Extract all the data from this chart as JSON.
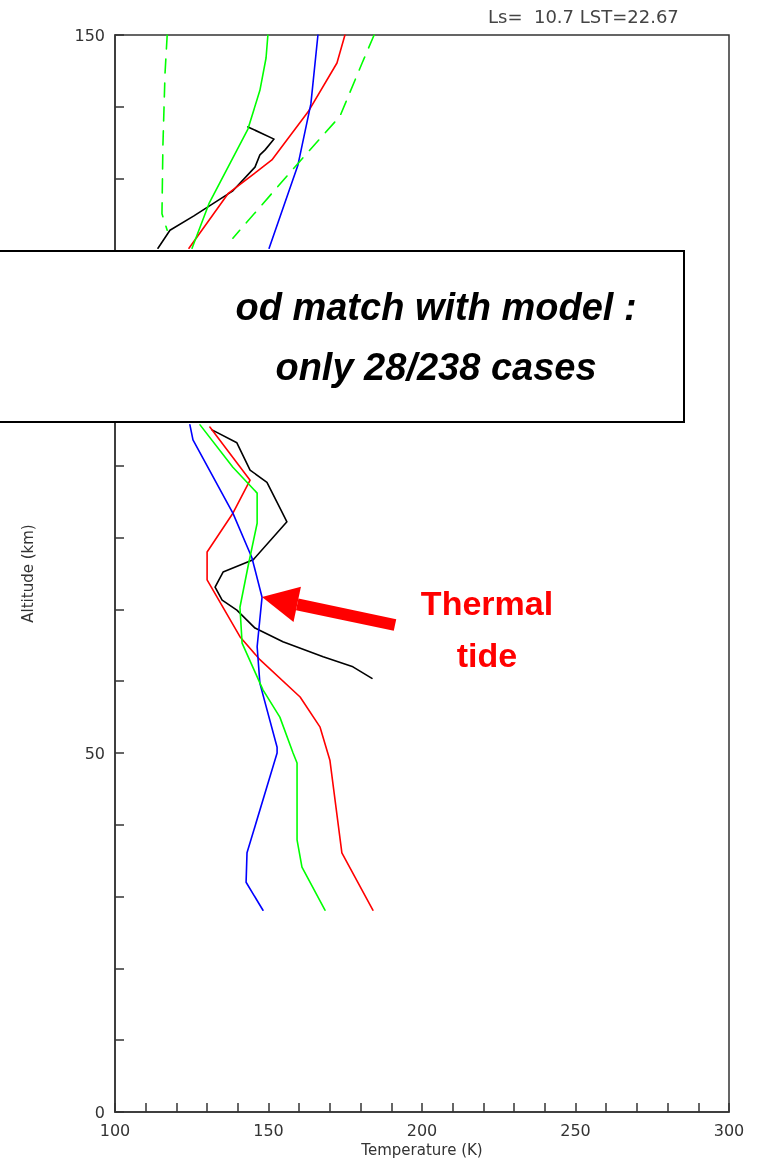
{
  "chart_data": {
    "type": "line",
    "title": "Ls=  10.7 LST=22.67",
    "xlabel": "Temperature (K)",
    "ylabel": "Altitude (km)",
    "xlim": [
      100,
      300
    ],
    "ylim": [
      0,
      150
    ],
    "xticks": [
      100,
      {
        "value": 110,
        "label": null
      },
      {
        "value": 120,
        "label": null
      },
      {
        "value": 130,
        "label": null
      },
      {
        "value": 140,
        "label": null
      },
      150,
      {
        "value": 160,
        "label": null
      },
      {
        "value": 170,
        "label": null
      },
      {
        "value": 180,
        "label": null
      },
      {
        "value": 190,
        "label": null
      },
      200,
      {
        "value": 210,
        "label": null
      },
      {
        "value": 220,
        "label": null
      },
      {
        "value": 230,
        "label": null
      },
      {
        "value": 240,
        "label": null
      },
      250,
      {
        "value": 260,
        "label": null
      },
      {
        "value": 270,
        "label": null
      },
      {
        "value": 280,
        "label": null
      },
      {
        "value": 290,
        "label": null
      },
      300
    ],
    "yticks": [
      0,
      {
        "value": 10,
        "label": null
      },
      {
        "value": 20,
        "label": null
      },
      {
        "value": 30,
        "label": null
      },
      {
        "value": 40,
        "label": null
      },
      50,
      {
        "value": 60,
        "label": null
      },
      {
        "value": 70,
        "label": null
      },
      {
        "value": 80,
        "label": null
      },
      {
        "value": 90,
        "label": null
      },
      {
        "value": 100,
        "label": null
      },
      {
        "value": 110,
        "label": null
      },
      {
        "value": 120,
        "label": null
      },
      {
        "value": 130,
        "label": null
      },
      {
        "value": 140,
        "label": null
      },
      150
    ],
    "grid": false,
    "marker": "none",
    "series": [
      {
        "color": "#000000",
        "line_style": "solid",
        "x": [
          143.3,
          151.8,
          148.9,
          147.2,
          145.6,
          138.4,
          125.7,
          117.9,
          114,
          null,
          131.6,
          139.7,
          144,
          149.5,
          156,
          145,
          135.2,
          132.6,
          134.9,
          139.7,
          145.6,
          154.7,
          167.8,
          177.5,
          183.7
        ],
        "values": [
          137.2,
          135.5,
          134,
          133.3,
          131.6,
          128.3,
          124.8,
          122.8,
          120.3,
          null,
          95,
          93.2,
          89.4,
          87.7,
          82.2,
          76.9,
          75.2,
          73.1,
          71.3,
          69.9,
          67.4,
          65.5,
          63.4,
          62,
          60.4
        ]
      },
      {
        "color": "#ff0000",
        "line_style": "solid",
        "x": [
          174.9,
          172.3,
          162.9,
          151.1,
          136.8,
          124.1,
          null,
          130.9,
          144,
          138.4,
          130,
          130,
          140.7,
          147.2,
          160.3,
          166.8,
          170,
          173.9,
          184
        ],
        "values": [
          150,
          146.1,
          139.3,
          132.6,
          127.9,
          120.3,
          null,
          95.4,
          88,
          83.4,
          78,
          74.1,
          66.2,
          63,
          57.8,
          53.6,
          49,
          36.1,
          28.1
        ]
      },
      {
        "color": "#0000ff",
        "line_style": "solid",
        "x": [
          166.1,
          163.8,
          159.6,
          150.2,
          null,
          124.4,
          125.4,
          138.4,
          144.6,
          147.9,
          146.3,
          147.2,
          152.8,
          152.8,
          143,
          142.7,
          148.2
        ],
        "values": [
          150,
          140.4,
          131.9,
          120.3,
          null,
          95.7,
          93.6,
          83.4,
          77.2,
          71.7,
          64.8,
          59.7,
          50.8,
          50,
          36.1,
          32,
          28.1
        ]
      },
      {
        "color": "#00ff00",
        "line_style": "solid",
        "x": [
          149.8,
          149.2,
          147.2,
          143.3,
          130.6,
          125.1,
          null,
          127.7,
          138.4,
          146.3,
          146.3,
          143.3,
          140.7,
          141.4,
          148.2,
          153.7,
          158,
          159.3,
          159.3,
          160.9,
          168.4
        ],
        "values": [
          150,
          146.8,
          142.3,
          136.9,
          126.5,
          120.3,
          null,
          95.7,
          89.8,
          86.2,
          82,
          75.9,
          70.3,
          65.3,
          58.8,
          55,
          50,
          48.6,
          37.9,
          34.1,
          28.1
        ]
      },
      {
        "color": "#00ff00",
        "line_style": "dashed",
        "x": [
          117,
          116.3,
          115.6,
          115.3,
          117
        ],
        "values": [
          150,
          144.7,
          134.5,
          125.1,
          122.8
        ]
      },
      {
        "color": "#00ff00",
        "line_style": "dashed",
        "x": [
          184.4,
          180.5,
          173.3,
          160.6,
          138.4
        ],
        "values": [
          150,
          146.1,
          138.7,
          132.6,
          121.7
        ]
      }
    ],
    "annotations": [
      "od match with model :",
      "only 28/238 cases",
      "Thermal tide"
    ]
  }
}
